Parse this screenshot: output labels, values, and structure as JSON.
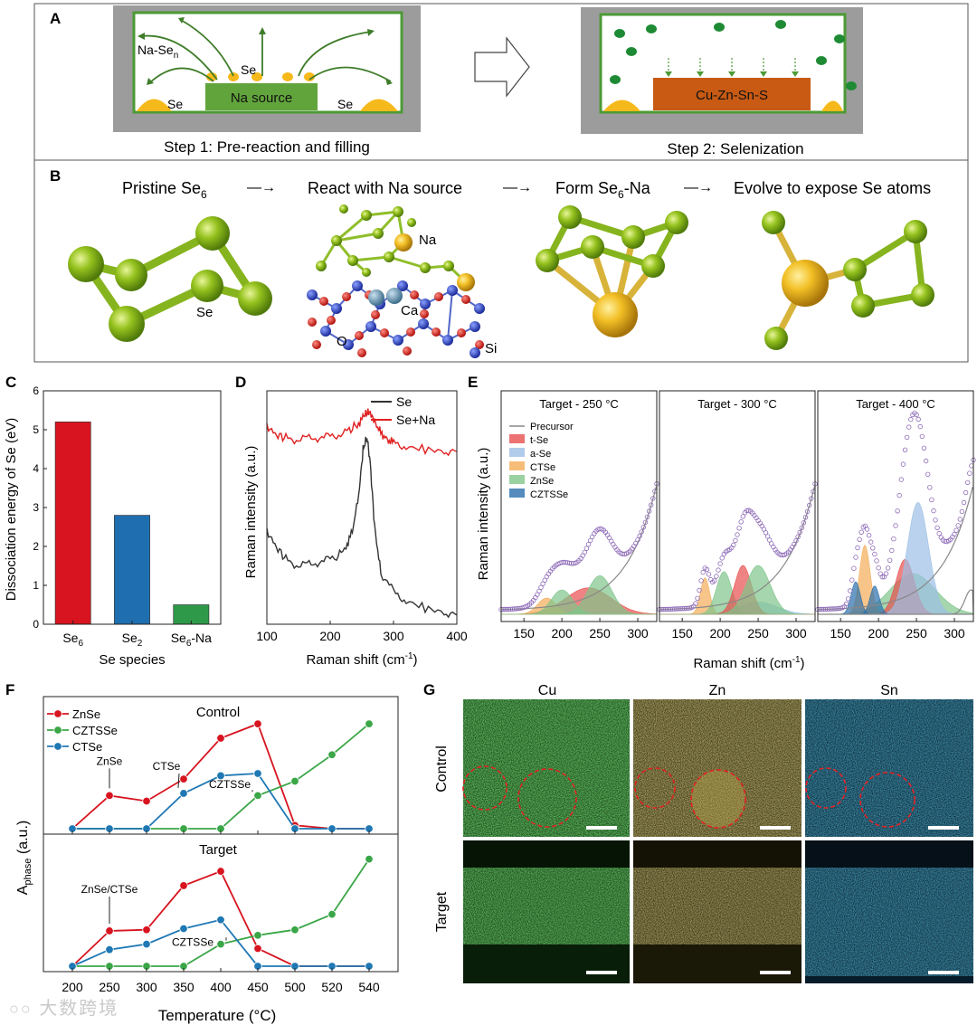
{
  "panel_labels": {
    "a": "A",
    "b": "B",
    "c": "C",
    "d": "D",
    "e": "E",
    "f": "F",
    "g": "G"
  },
  "panel_a": {
    "step1_caption": "Step 1: Pre-reaction and filling",
    "step2_caption": "Step 2: Selenization",
    "na_sen_label": "Na-Se",
    "na_sen_sub": "n",
    "se_center": "Se",
    "se_left": "Se",
    "se_right": "Se",
    "na_source": "Na source",
    "substrate": "Cu-Zn-Sn-S"
  },
  "panel_b": {
    "step1": "Pristine Se",
    "step1_sub": "6",
    "arrow": "—→",
    "step2": "React with Na source",
    "step3a": "Form Se",
    "step3_sub": "6",
    "step3b": "-Na",
    "step4": "Evolve to expose Se atoms",
    "atom_se": "Se",
    "atom_na": "Na",
    "atom_ca": "Ca",
    "atom_o": "O",
    "atom_si": "Si"
  },
  "panel_g": {
    "cols": [
      "Cu",
      "Zn",
      "Sn"
    ],
    "rows": [
      "Control",
      "Target"
    ],
    "colors": {
      "cu": "#2ea02e",
      "zn": "#b5a43c",
      "sn": "#1d8cb0",
      "circle": "#e32222"
    }
  },
  "watermark": "大数跨境",
  "chart_data": [
    {
      "id": "C",
      "type": "bar",
      "categories": [
        "Se6",
        "Se2",
        "Se6-Na"
      ],
      "category_labels": [
        {
          "base": "Se",
          "sub": "6",
          "tail": ""
        },
        {
          "base": "Se",
          "sub": "2",
          "tail": ""
        },
        {
          "base": "Se",
          "sub": "6",
          "tail": "-Na"
        }
      ],
      "values": [
        5.2,
        2.8,
        0.5
      ],
      "colors": [
        "#d7141f",
        "#1f6fb0",
        "#2e9a49"
      ],
      "xlabel": "Se species",
      "ylabel": "Dissociation energy of Se (eV)",
      "ylim": [
        0,
        6
      ],
      "yticks": [
        "0",
        "1",
        "2",
        "3",
        "4",
        "5",
        "6"
      ]
    },
    {
      "id": "D",
      "type": "line",
      "xlabel": "Raman shift (cm",
      "xlabel_sup": "-1",
      "xlabel_end": ")",
      "ylabel": "Raman intensity (a.u.)",
      "xlim": [
        100,
        400
      ],
      "xticks": [
        "100",
        "200",
        "300",
        "400"
      ],
      "series": [
        {
          "name": "Se",
          "color": "#333333",
          "x": [
            100,
            115,
            130,
            150,
            170,
            190,
            210,
            225,
            235,
            245,
            252,
            258,
            263,
            270,
            280,
            300,
            320,
            350,
            380,
            400
          ],
          "y": [
            0.4,
            0.33,
            0.28,
            0.25,
            0.26,
            0.27,
            0.29,
            0.33,
            0.4,
            0.55,
            0.75,
            0.8,
            0.7,
            0.42,
            0.22,
            0.14,
            0.1,
            0.07,
            0.05,
            0.04
          ]
        },
        {
          "name": "Se+Na",
          "color": "#e02020",
          "x": [
            100,
            115,
            130,
            150,
            170,
            190,
            210,
            230,
            245,
            255,
            262,
            270,
            280,
            290,
            300,
            320,
            350,
            380,
            400
          ],
          "y": [
            0.85,
            0.81,
            0.8,
            0.79,
            0.8,
            0.8,
            0.81,
            0.83,
            0.86,
            0.9,
            0.91,
            0.87,
            0.82,
            0.79,
            0.78,
            0.76,
            0.75,
            0.74,
            0.74
          ]
        }
      ]
    },
    {
      "id": "E",
      "type": "area",
      "ylabel": "Raman intensity (a.u.)",
      "xlabel": "Raman shift (cm",
      "xlabel_sup": "-1",
      "xlabel_end": ")",
      "xticks": [
        "150",
        "200",
        "250",
        "300"
      ],
      "xlim": [
        120,
        325
      ],
      "legend": [
        {
          "name": "Precursor",
          "color": "#888888"
        },
        {
          "name": "t-Se",
          "color": "#e84f4f"
        },
        {
          "name": "a-Se",
          "color": "#9dbfe6"
        },
        {
          "name": "CTSe",
          "color": "#f4ad58"
        },
        {
          "name": "ZnSe",
          "color": "#7fc58a"
        },
        {
          "name": "CZTSSe",
          "color": "#2a6fad"
        }
      ],
      "subpanels": [
        {
          "title": "Target - 250 °C",
          "peaks": [
            {
              "phase": "t-Se",
              "center": 235,
              "height": 0.13,
              "width": 30
            },
            {
              "phase": "CTSe",
              "center": 180,
              "height": 0.08,
              "width": 12
            },
            {
              "phase": "ZnSe",
              "center": 200,
              "height": 0.12,
              "width": 14
            },
            {
              "phase": "ZnSe",
              "center": 250,
              "height": 0.19,
              "width": 16
            }
          ]
        },
        {
          "title": "Target - 300 °C",
          "peaks": [
            {
              "phase": "a-Se",
              "center": 250,
              "height": 0.06,
              "width": 25
            },
            {
              "phase": "CTSe",
              "center": 180,
              "height": 0.18,
              "width": 6
            },
            {
              "phase": "ZnSe",
              "center": 205,
              "height": 0.21,
              "width": 10
            },
            {
              "phase": "t-Se",
              "center": 230,
              "height": 0.24,
              "width": 11
            },
            {
              "phase": "ZnSe",
              "center": 250,
              "height": 0.24,
              "width": 16
            }
          ]
        },
        {
          "title": "Target - 400 °C",
          "peaks": [
            {
              "phase": "ZnSe",
              "center": 245,
              "height": 0.2,
              "width": 30
            },
            {
              "phase": "t-Se",
              "center": 235,
              "height": 0.27,
              "width": 12
            },
            {
              "phase": "a-Se",
              "center": 252,
              "height": 0.55,
              "width": 14
            },
            {
              "phase": "CTSe",
              "center": 182,
              "height": 0.34,
              "width": 7
            },
            {
              "phase": "CZTSSe",
              "center": 170,
              "height": 0.16,
              "width": 6
            },
            {
              "phase": "CZTSSe",
              "center": 195,
              "height": 0.14,
              "width": 6
            },
            {
              "phase": "Precursor",
              "center": 322,
              "height": 0.12,
              "width": 8
            }
          ]
        }
      ]
    },
    {
      "id": "F",
      "type": "line",
      "ylabel_base": "A",
      "ylabel_sub": "phase",
      "ylabel_end": " (a.u.)",
      "xlabel": "Temperature (°C)",
      "categories": [
        "200",
        "250",
        "300",
        "350",
        "400",
        "450",
        "500",
        "520",
        "540"
      ],
      "legend": [
        {
          "name": "ZnSe",
          "color": "#d7141f"
        },
        {
          "name": "CZTSSe",
          "color": "#3aa647"
        },
        {
          "name": "CTSe",
          "color": "#1f78b4"
        }
      ],
      "subplots": [
        {
          "title": "Control",
          "series": [
            {
              "name": "ZnSe",
              "values": [
                0,
                0.3,
                0.25,
                0.45,
                0.82,
                0.95,
                0.03,
                0,
                0
              ]
            },
            {
              "name": "CZTSSe",
              "values": [
                0,
                0,
                0,
                0,
                0,
                0.3,
                0.43,
                0.67,
                0.95
              ]
            },
            {
              "name": "CTSe",
              "values": [
                0,
                0,
                0,
                0.32,
                0.48,
                0.5,
                0,
                0,
                0
              ]
            }
          ],
          "annotations": [
            "ZnSe",
            "CTSe",
            "CZTSSe"
          ]
        },
        {
          "title": "Target",
          "series": [
            {
              "name": "ZnSe",
              "values": [
                0,
                0.32,
                0.33,
                0.73,
                0.86,
                0.16,
                0,
                0,
                0
              ]
            },
            {
              "name": "CZTSSe",
              "values": [
                0,
                0,
                0,
                0,
                0.2,
                0.28,
                0.33,
                0.47,
                0.97
              ]
            },
            {
              "name": "CTSe",
              "values": [
                0,
                0.15,
                0.2,
                0.34,
                0.42,
                0,
                0,
                0,
                0
              ]
            }
          ],
          "annotations": [
            "ZnSe/CTSe",
            "CZTSSe"
          ]
        }
      ]
    }
  ]
}
